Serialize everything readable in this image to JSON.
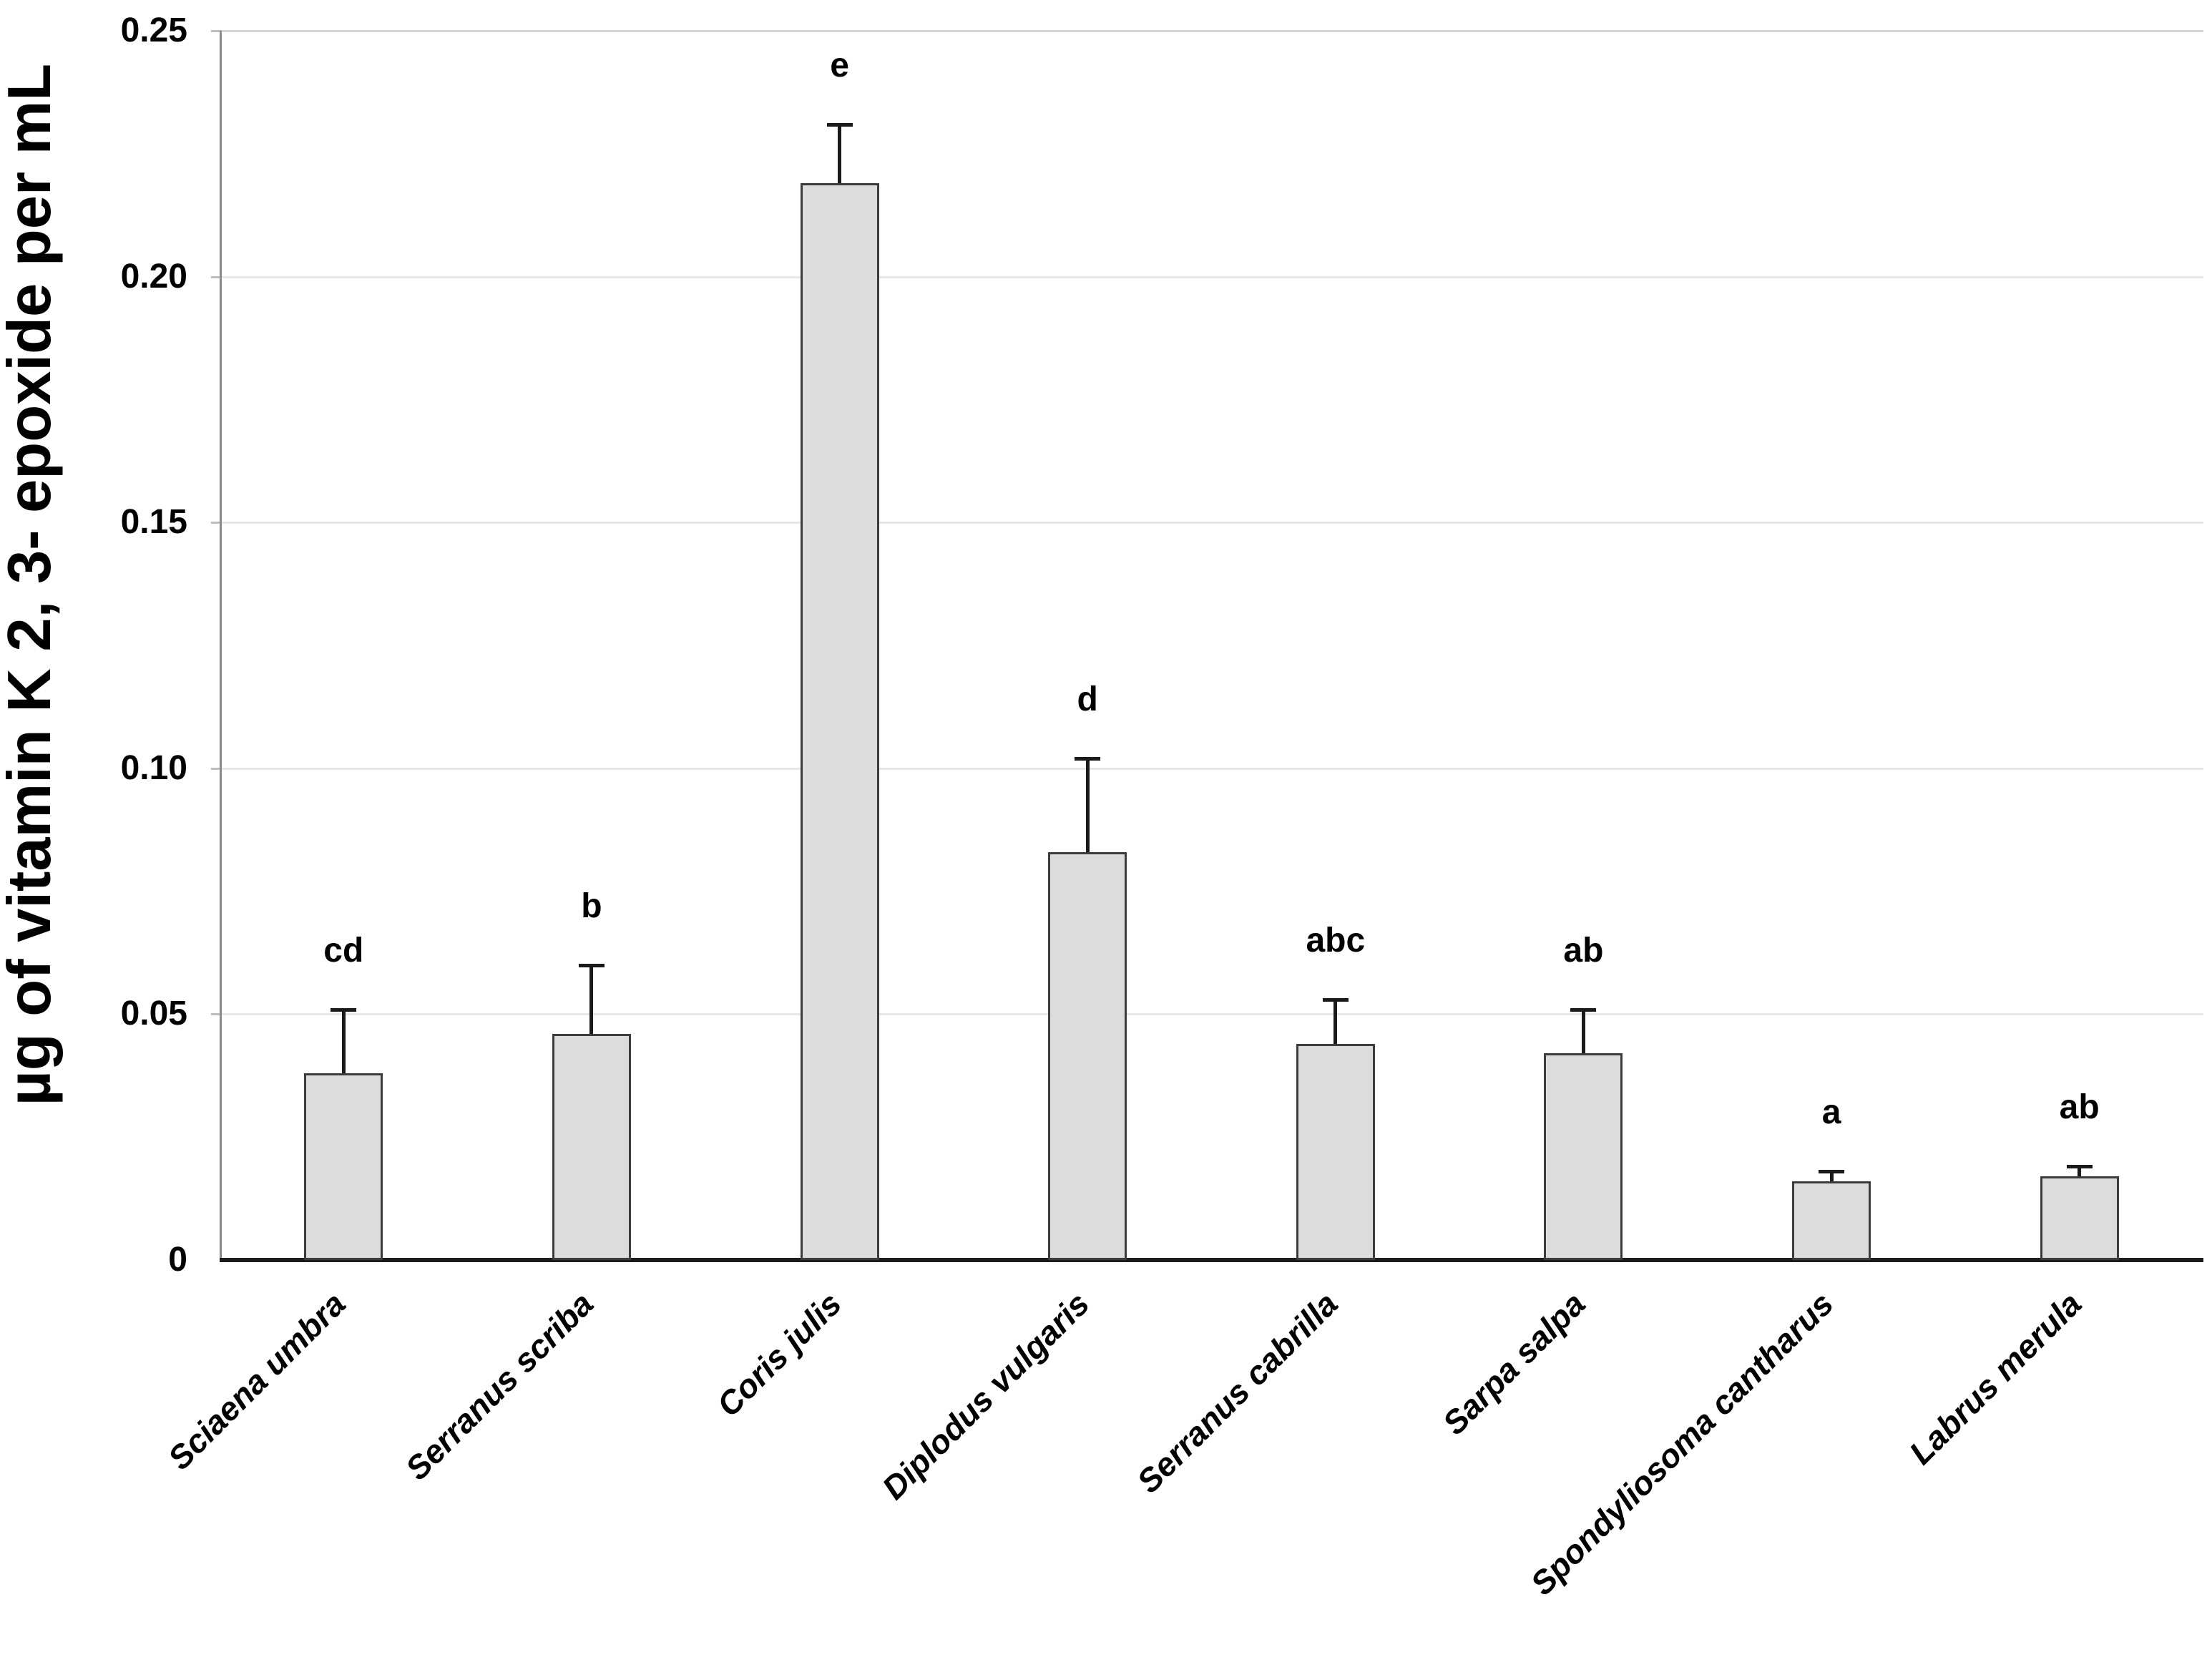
{
  "chart_data": {
    "type": "bar",
    "title": "",
    "xlabel": "",
    "ylabel": "µg of vitamin K 2, 3- epoxide per mL",
    "ylim": [
      0,
      0.25
    ],
    "grid": "faint horizontal gridlines every 0.05",
    "legend_position": "none",
    "categories": [
      "Sciaena umbra",
      "Serranus scriba",
      "Coris julis",
      "Diplodus vulgaris",
      "Serranus cabrilla",
      "Sarpa salpa",
      "Spondyliosoma cantharus",
      "Labrus merula"
    ],
    "values": [
      0.038,
      0.046,
      0.219,
      0.083,
      0.044,
      0.042,
      0.016,
      0.017
    ],
    "errors_plus": [
      0.013,
      0.014,
      0.012,
      0.019,
      0.009,
      0.009,
      0.002,
      0.002
    ],
    "sig_letters": [
      "cd",
      "b",
      "e",
      "d",
      "abc",
      "ab",
      "a",
      "ab"
    ],
    "bar_fill": "#dcdcdc",
    "bar_border": "#3c3c3c",
    "error_color": "#1a1a1a"
  },
  "axis": {
    "ytick_labels": [
      "0.25",
      "0.20",
      "0.15",
      "0.10",
      "0.05",
      "0"
    ],
    "ytick_values": [
      0.25,
      0.2,
      0.15,
      0.1,
      0.05,
      0
    ]
  }
}
